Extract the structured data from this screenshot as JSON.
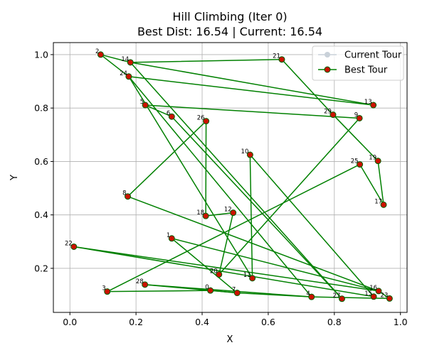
{
  "chart_data": {
    "type": "line",
    "title_line1": "Hill Climbing (Iter 0)",
    "title_line2": "Best Dist: 16.54 | Current: 16.54",
    "xlabel": "X",
    "ylabel": "Y",
    "xlim": [
      -0.05,
      1.02
    ],
    "ylim": [
      0.035,
      1.045
    ],
    "xticks": [
      0.0,
      0.2,
      0.4,
      0.6,
      0.8,
      1.0
    ],
    "xtick_labels": [
      "0.0",
      "0.2",
      "0.4",
      "0.6",
      "0.8",
      "1.0"
    ],
    "yticks": [
      0.2,
      0.4,
      0.6,
      0.8,
      1.0
    ],
    "ytick_labels": [
      "0.2",
      "0.4",
      "0.6",
      "0.8",
      "1.0"
    ],
    "grid": true,
    "legend_position": "top-right",
    "legend": [
      {
        "label": "Current Tour",
        "color": "#c9d1d9"
      },
      {
        "label": "Best Tour",
        "color": "#008000"
      }
    ],
    "colors": {
      "line": "#008000",
      "marker_fill": "#cc1100",
      "marker_edge": "#006400",
      "current": "#c9d1d9"
    },
    "cities": [
      {
        "id": "0",
        "x": 0.425,
        "y": 0.117
      },
      {
        "id": "1",
        "x": 0.308,
        "y": 0.312
      },
      {
        "id": "2",
        "x": 0.093,
        "y": 1.0
      },
      {
        "id": "3",
        "x": 0.113,
        "y": 0.113
      },
      {
        "id": "4",
        "x": 0.731,
        "y": 0.093
      },
      {
        "id": "5",
        "x": 0.228,
        "y": 0.811
      },
      {
        "id": "6",
        "x": 0.308,
        "y": 0.768
      },
      {
        "id": "7",
        "x": 0.506,
        "y": 0.108
      },
      {
        "id": "8",
        "x": 0.175,
        "y": 0.469
      },
      {
        "id": "9",
        "x": 0.876,
        "y": 0.762
      },
      {
        "id": "10",
        "x": 0.545,
        "y": 0.625
      },
      {
        "id": "11",
        "x": 0.552,
        "y": 0.163
      },
      {
        "id": "12",
        "x": 0.494,
        "y": 0.408
      },
      {
        "id": "13",
        "x": 0.918,
        "y": 0.811
      },
      {
        "id": "14",
        "x": 0.183,
        "y": 0.971
      },
      {
        "id": "15",
        "x": 0.919,
        "y": 0.094
      },
      {
        "id": "16",
        "x": 0.934,
        "y": 0.115
      },
      {
        "id": "17",
        "x": 0.949,
        "y": 0.438
      },
      {
        "id": "18",
        "x": 0.411,
        "y": 0.396
      },
      {
        "id": "19",
        "x": 0.932,
        "y": 0.602
      },
      {
        "id": "20",
        "x": 0.451,
        "y": 0.177
      },
      {
        "id": "21",
        "x": 0.641,
        "y": 0.982
      },
      {
        "id": "22",
        "x": 0.012,
        "y": 0.281
      },
      {
        "id": "23",
        "x": 0.967,
        "y": 0.087
      },
      {
        "id": "24",
        "x": 0.178,
        "y": 0.918
      },
      {
        "id": "25",
        "x": 0.877,
        "y": 0.589
      },
      {
        "id": "26",
        "x": 0.412,
        "y": 0.751
      },
      {
        "id": "27",
        "x": 0.823,
        "y": 0.086
      },
      {
        "id": "28",
        "x": 0.227,
        "y": 0.139
      },
      {
        "id": "29",
        "x": 0.796,
        "y": 0.775
      }
    ],
    "tour": [
      "2",
      "14",
      "21",
      "29",
      "19",
      "17",
      "25",
      "3",
      "0",
      "7",
      "4",
      "23",
      "16",
      "22",
      "15",
      "10",
      "11",
      "24",
      "4",
      "28",
      "7",
      "1",
      "16",
      "8",
      "26",
      "18",
      "12",
      "20",
      "9",
      "5",
      "6",
      "27",
      "14",
      "13",
      "24",
      "2"
    ]
  }
}
